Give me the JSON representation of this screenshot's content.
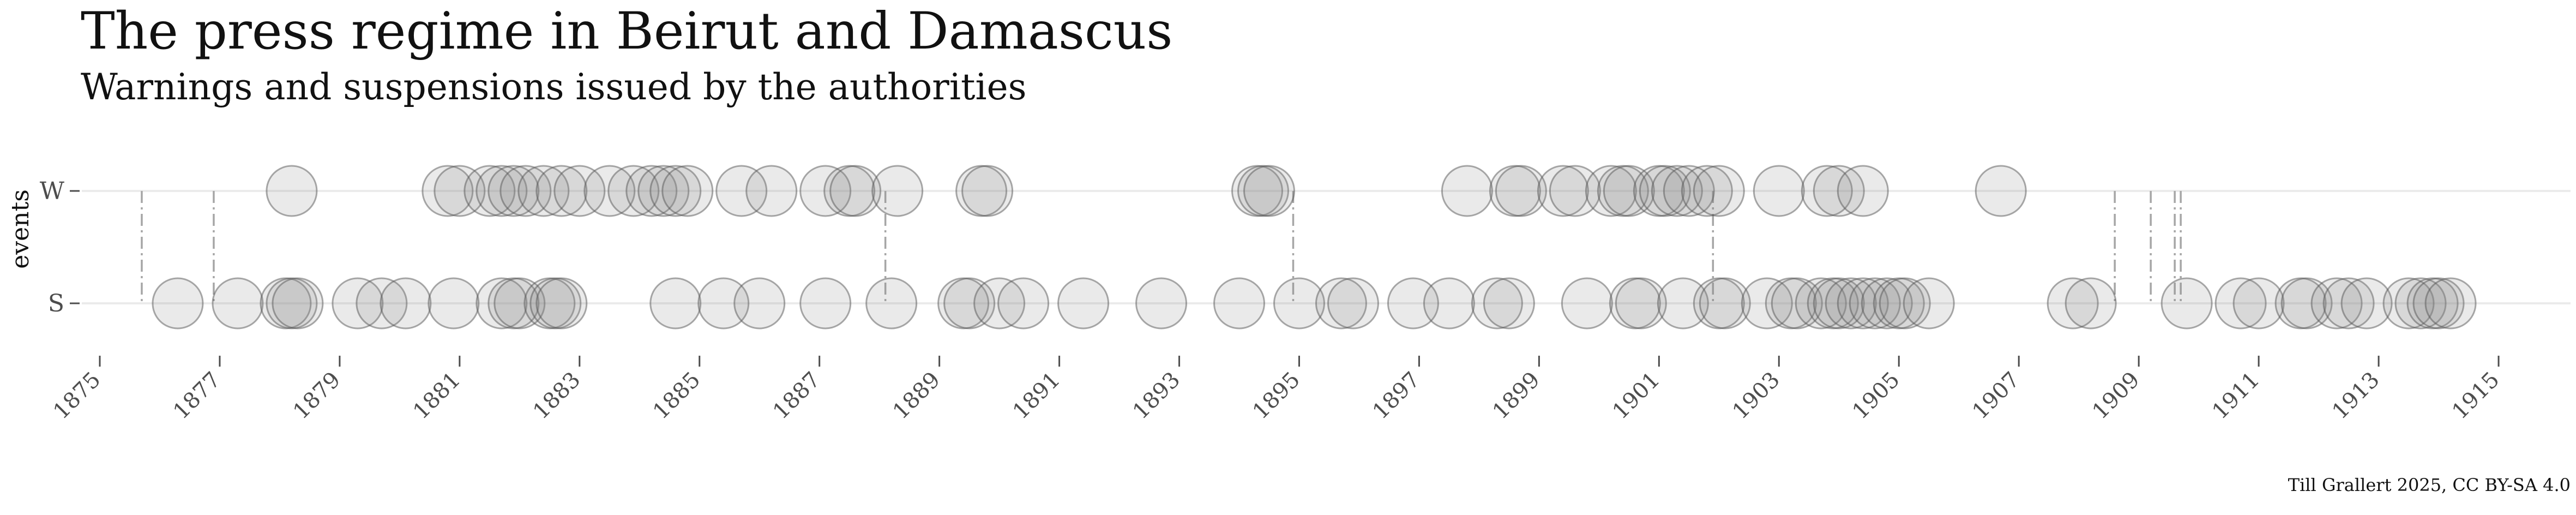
{
  "chart_data": {
    "type": "scatter",
    "title": "The press regime in Beirut and Damascus",
    "subtitle": "Warnings and suspensions issued by the authorities",
    "caption": "Till Grallert 2025, CC BY-SA 4.0",
    "ylabel": "events",
    "xlim": [
      1874.7,
      1916.2
    ],
    "x_ticks": [
      1875,
      1877,
      1879,
      1881,
      1883,
      1885,
      1887,
      1889,
      1891,
      1893,
      1895,
      1897,
      1899,
      1901,
      1903,
      1905,
      1907,
      1909,
      1911,
      1913,
      1915
    ],
    "categories": [
      "W",
      "S"
    ],
    "grid": true,
    "marker_color": "#808080",
    "series": [
      {
        "category": "W",
        "x": [
          1878.2,
          1880.8,
          1881.0,
          1881.5,
          1881.7,
          1881.9,
          1882.1,
          1882.4,
          1882.7,
          1883.0,
          1883.5,
          1883.9,
          1884.2,
          1884.4,
          1884.6,
          1884.8,
          1885.7,
          1886.2,
          1887.1,
          1887.5,
          1887.6,
          1888.3,
          1889.7,
          1889.8,
          1894.3,
          1894.4,
          1894.5,
          1897.8,
          1898.6,
          1898.7,
          1899.4,
          1899.6,
          1900.2,
          1900.4,
          1900.5,
          1901.0,
          1901.1,
          1901.3,
          1901.5,
          1901.8,
          1902.0,
          1903.0,
          1903.8,
          1904.0,
          1904.4,
          1906.7
        ]
      },
      {
        "category": "S",
        "x": [
          1876.3,
          1877.3,
          1878.1,
          1878.2,
          1878.3,
          1879.3,
          1879.7,
          1880.1,
          1880.9,
          1881.7,
          1881.9,
          1882.0,
          1882.5,
          1882.6,
          1882.7,
          1884.6,
          1885.4,
          1886.0,
          1887.1,
          1888.2,
          1889.4,
          1889.5,
          1890.0,
          1890.4,
          1891.4,
          1892.7,
          1894.0,
          1895.0,
          1895.7,
          1895.9,
          1896.9,
          1897.5,
          1898.3,
          1898.5,
          1899.8,
          1900.6,
          1900.7,
          1901.4,
          1902.0,
          1902.1,
          1902.8,
          1903.2,
          1903.3,
          1903.7,
          1903.9,
          1904.0,
          1904.2,
          1904.4,
          1904.6,
          1904.8,
          1905.0,
          1905.1,
          1905.5,
          1907.9,
          1908.2,
          1909.8,
          1910.7,
          1911.0,
          1911.7,
          1911.8,
          1912.3,
          1912.5,
          1912.8,
          1913.5,
          1913.7,
          1913.9,
          1914.0,
          1914.2
        ]
      }
    ],
    "connectors": [
      1875.7,
      1876.9,
      1888.1,
      1894.9,
      1901.9,
      1908.6,
      1909.2,
      1909.6,
      1909.7
    ]
  }
}
